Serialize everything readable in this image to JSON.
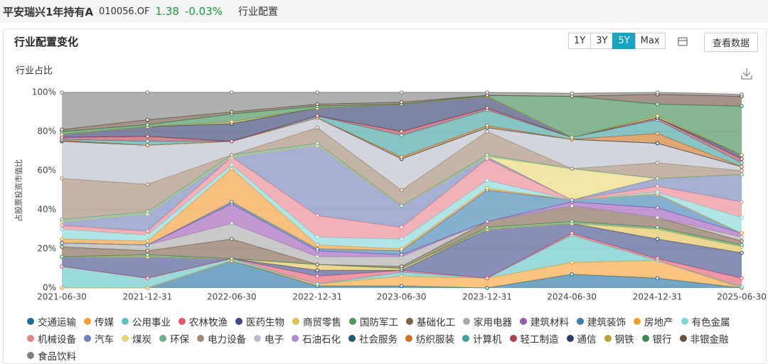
{
  "header": {
    "title": "平安瑞兴1年持有A",
    "code": "010056.OF",
    "price": "1.38",
    "change": "-0.03%",
    "section": "行业配置"
  },
  "toolbar": {
    "ranges": [
      "1Y",
      "3Y",
      "5Y",
      "Max"
    ],
    "active": 2,
    "view_data": "查看数据"
  },
  "chart_data": {
    "type": "area",
    "stacked": true,
    "title": "行业配置变化",
    "subtitle": "行业占比",
    "y_label": "占股票投资市值比",
    "x": [
      "2021-06-30",
      "2021-12-31",
      "2022-06-30",
      "2022-12-31",
      "2023-06-30",
      "2023-12-31",
      "2024-06-30",
      "2024-12-31",
      "2025-06-30"
    ],
    "ylim": [
      0,
      100
    ],
    "yticks": [
      {
        "value": 0,
        "label": "0%"
      },
      {
        "value": 20,
        "label": "20%"
      },
      {
        "value": 40,
        "label": "40%"
      },
      {
        "value": 60,
        "label": "60%"
      },
      {
        "value": 80,
        "label": "80%"
      },
      {
        "value": 100,
        "label": "100%"
      }
    ],
    "grid": true,
    "series": [
      {
        "name": "交通运输",
        "color": "#1f6f9e",
        "values": [
          0,
          0,
          14,
          1,
          1,
          0,
          7,
          5,
          0
        ]
      },
      {
        "name": "传媒",
        "color": "#f5a030",
        "values": [
          0,
          0,
          0,
          1,
          5,
          5,
          6,
          9,
          0
        ]
      },
      {
        "name": "公用事业",
        "color": "#5ec4c4",
        "values": [
          11,
          5,
          1,
          0,
          2,
          0,
          14,
          0,
          0.5
        ]
      },
      {
        "name": "农林牧渔",
        "color": "#e05a6a",
        "values": [
          0,
          0,
          0,
          4,
          1,
          0,
          1,
          1,
          4.5
        ]
      },
      {
        "name": "医药生物",
        "color": "#3f4b8a",
        "values": [
          5,
          11,
          0,
          3,
          0,
          25,
          5,
          10,
          13
        ]
      },
      {
        "name": "商贸零售",
        "color": "#e0c050",
        "values": [
          0,
          0,
          0,
          3,
          1,
          0,
          0,
          5,
          3
        ]
      },
      {
        "name": "国防军工",
        "color": "#4a9a5e",
        "values": [
          0,
          1,
          0,
          0,
          0,
          1,
          1,
          1,
          1
        ]
      },
      {
        "name": "基础化工",
        "color": "#7a6048",
        "values": [
          5,
          2,
          10,
          0,
          1,
          3,
          8,
          5,
          2
        ]
      },
      {
        "name": "家用电器",
        "color": "#a8a8a8",
        "values": [
          2,
          3,
          8,
          4,
          5,
          0,
          0,
          0,
          2
        ]
      },
      {
        "name": "建筑材料",
        "color": "#9b59b6",
        "values": [
          0,
          0,
          10,
          3,
          1,
          0,
          2,
          5,
          2
        ]
      },
      {
        "name": "建筑装饰",
        "color": "#3d7fb0",
        "values": [
          0,
          0,
          1,
          1,
          2,
          16,
          1,
          7,
          0
        ]
      },
      {
        "name": "房地产",
        "color": "#f39a2e",
        "values": [
          2,
          2,
          17,
          2,
          1,
          1,
          0,
          0,
          0
        ]
      },
      {
        "name": "有色金属",
        "color": "#7fd6d6",
        "values": [
          5,
          3,
          2,
          4,
          5,
          4,
          0,
          1,
          8
        ]
      },
      {
        "name": "机械设备",
        "color": "#e8828a",
        "values": [
          2,
          2,
          4,
          11,
          6,
          11,
          0,
          3,
          8
        ]
      },
      {
        "name": "汽车",
        "color": "#7080b8",
        "values": [
          2,
          9,
          0,
          36,
          11,
          1,
          0,
          4,
          14
        ]
      },
      {
        "name": "煤炭",
        "color": "#e8d670",
        "values": [
          0,
          0,
          0,
          0,
          0,
          0,
          16,
          0,
          0
        ]
      },
      {
        "name": "环保",
        "color": "#6ab08a",
        "values": [
          1,
          1,
          1,
          1,
          0,
          1,
          0,
          0,
          0
        ]
      },
      {
        "name": "电力设备",
        "color": "#a08870",
        "values": [
          21,
          14,
          0,
          8,
          8,
          12,
          0,
          8,
          2
        ]
      },
      {
        "name": "电子",
        "color": "#b8bcc8",
        "values": [
          19,
          20,
          7,
          5,
          16,
          2,
          15,
          10,
          2
        ]
      },
      {
        "name": "石油石化",
        "color": "#b08ad0",
        "values": [
          0,
          0,
          0,
          0,
          0,
          0,
          0,
          0,
          0
        ]
      },
      {
        "name": "社会服务",
        "color": "#1e5a7a",
        "values": [
          0,
          0,
          0,
          0,
          0,
          0,
          0,
          0,
          0
        ]
      },
      {
        "name": "纺织服装",
        "color": "#d07020",
        "values": [
          0.5,
          0,
          0,
          0,
          1,
          1,
          0,
          5,
          0
        ]
      },
      {
        "name": "计算机",
        "color": "#3fa0a0",
        "values": [
          0.5,
          2,
          0,
          1,
          11,
          8,
          1,
          7,
          2
        ]
      },
      {
        "name": "轻工制造",
        "color": "#b04050",
        "values": [
          1,
          2.5,
          0,
          0,
          2,
          1,
          0,
          1,
          2
        ]
      },
      {
        "name": "通信",
        "color": "#2e3a6a",
        "values": [
          1.5,
          5,
          9,
          4,
          14,
          6,
          0,
          0,
          2
        ]
      },
      {
        "name": "钢铁",
        "color": "#b8a040",
        "values": [
          0,
          0,
          1,
          0,
          0,
          0,
          0,
          1,
          0
        ]
      },
      {
        "name": "银行",
        "color": "#3a8a50",
        "values": [
          1.5,
          1,
          4,
          1,
          0,
          0.5,
          21,
          6,
          25
        ]
      },
      {
        "name": "非银金融",
        "color": "#6a5040",
        "values": [
          1,
          2.5,
          1,
          1,
          1,
          0,
          0,
          5,
          5
        ]
      },
      {
        "name": "食品饮料",
        "color": "#808080",
        "values": [
          19,
          14,
          10,
          6,
          5,
          1.5,
          1.5,
          1,
          1
        ]
      }
    ]
  }
}
